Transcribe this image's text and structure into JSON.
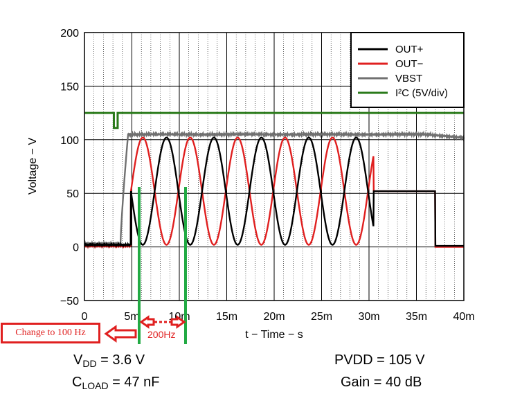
{
  "chart_data": {
    "type": "line",
    "xlabel": "t − Time − s",
    "ylabel": "Voltage − V",
    "xlim": [
      0,
      40
    ],
    "ylim": [
      -50,
      200
    ],
    "x_unit_suffix": "m",
    "x_ticks": [
      0,
      5,
      10,
      15,
      20,
      25,
      30,
      35,
      40
    ],
    "x_tick_labels": [
      "0",
      "5m",
      "10m",
      "15m",
      "20m",
      "25m",
      "30m",
      "35m",
      "40m"
    ],
    "y_ticks": [
      -50,
      0,
      50,
      100,
      150,
      200
    ],
    "y_tick_labels": [
      "−50",
      "0",
      "50",
      "100",
      "150",
      "200"
    ],
    "grid": true,
    "legend_position": "top-right",
    "series": [
      {
        "name": "OUT+",
        "color": "#000000",
        "kind": "burst",
        "start_ms": 4.9,
        "end_ms": 30.5,
        "freq_khz": 0.2,
        "amplitude_v": 50,
        "offset_v": 52,
        "idle_before_v": 2,
        "idle_after_v": 52,
        "after_end_ms": 37,
        "final_v": 1
      },
      {
        "name": "OUT−",
        "color": "#e02020",
        "kind": "burst_inverted",
        "start_ms": 4.9,
        "end_ms": 30.5,
        "freq_khz": 0.2,
        "amplitude_v": 50,
        "offset_v": 52,
        "idle_before_v": 1,
        "idle_after_v": 52,
        "after_end_ms": 37,
        "final_v": 0
      },
      {
        "name": "VBST",
        "color": "#707070",
        "kind": "boost",
        "start_ms": 3.8,
        "settle_ms": 4.6,
        "idle_v": 3,
        "level_v": 105,
        "end_v": 102
      },
      {
        "name": "I²C (5V/div)",
        "color": "#2a7a1a",
        "kind": "digital",
        "high_v": 125,
        "low_v": 111,
        "pulse_start_ms": 3.1,
        "pulse_end_ms": 3.5
      }
    ]
  },
  "annotations": {
    "change_label": "Change to 100 Hz",
    "period_label": "200Hz"
  },
  "conditions": {
    "vdd_prefix": "V",
    "vdd_sub": "DD",
    "vdd_value": " = 3.6 V",
    "cload_prefix": "C",
    "cload_sub": "LOAD",
    "cload_value": " = 47 nF",
    "pvdd": "PVDD = 105 V",
    "gain": "Gain = 40 dB"
  },
  "colors": {
    "annotation_red": "#e02020",
    "annotation_green": "#22aa44"
  }
}
